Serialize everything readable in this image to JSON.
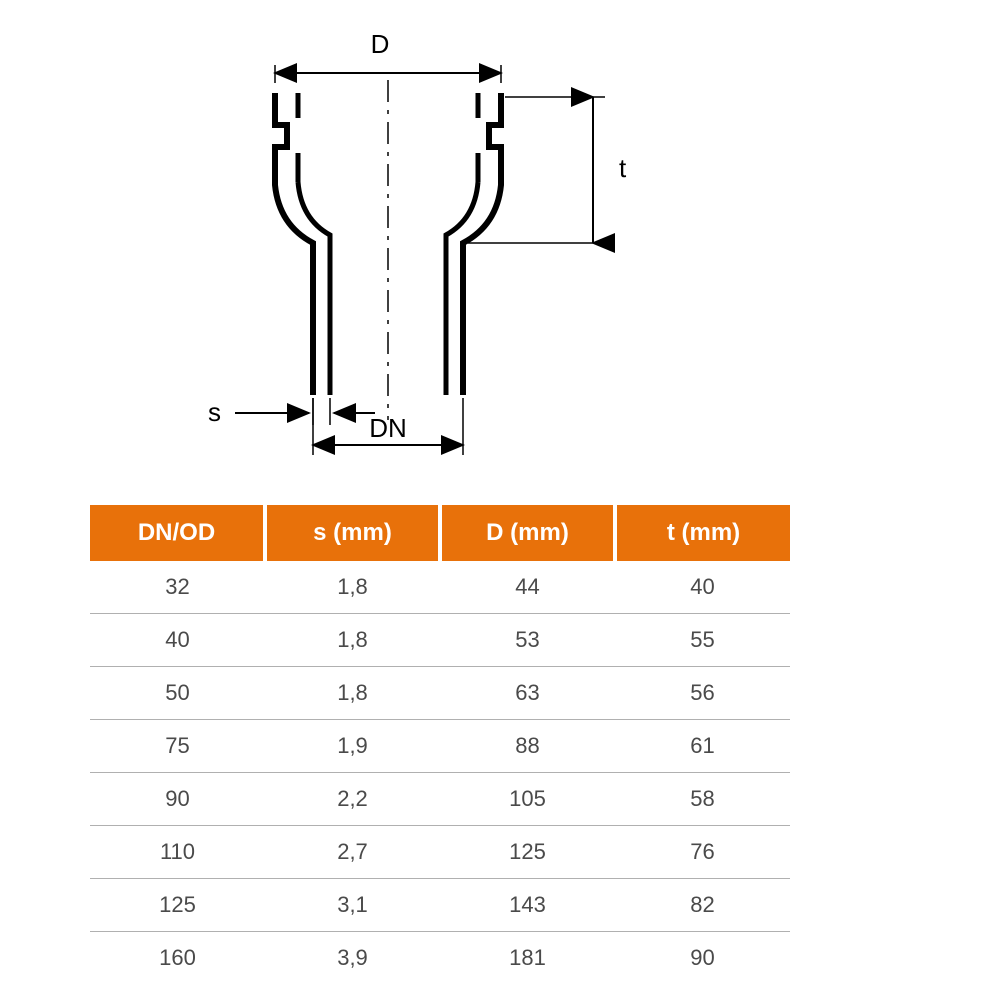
{
  "diagram": {
    "labels": {
      "D": "D",
      "t": "t",
      "s": "s",
      "DN": "DN"
    },
    "stroke_color": "#000000",
    "stroke_width_main": 6,
    "stroke_width_dim": 2,
    "label_fontsize": 26
  },
  "table": {
    "type": "table",
    "header_bg": "#e8710a",
    "header_fg": "#ffffff",
    "header_fontsize": 24,
    "cell_fg": "#4a4a4a",
    "cell_fontsize": 22,
    "row_border_color": "#b0b0b0",
    "header_gap_color": "#ffffff",
    "columns": [
      "DN/OD",
      "s (mm)",
      "D (mm)",
      "t (mm)"
    ],
    "rows": [
      [
        "32",
        "1,8",
        "44",
        "40"
      ],
      [
        "40",
        "1,8",
        "53",
        "55"
      ],
      [
        "50",
        "1,8",
        "63",
        "56"
      ],
      [
        "75",
        "1,9",
        "88",
        "61"
      ],
      [
        "90",
        "2,2",
        "105",
        "58"
      ],
      [
        "110",
        "2,7",
        "125",
        "76"
      ],
      [
        "125",
        "3,1",
        "143",
        "82"
      ],
      [
        "160",
        "3,9",
        "181",
        "90"
      ]
    ]
  }
}
